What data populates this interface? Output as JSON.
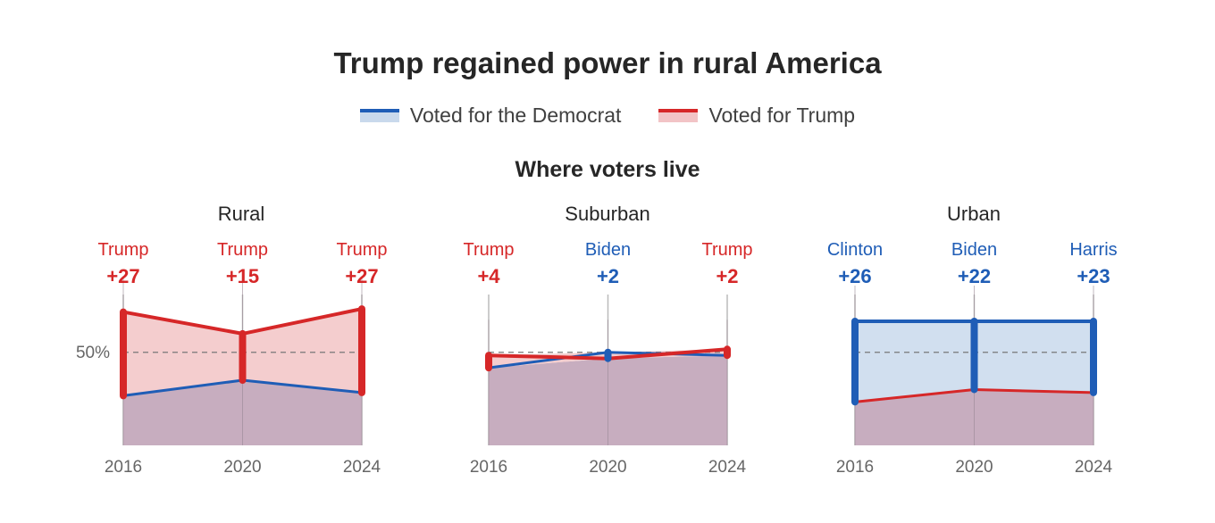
{
  "title": "Trump regained power in rural America",
  "legend": {
    "democrat": "Voted for the Democrat",
    "trump": "Voted for Trump"
  },
  "subtitle": "Where voters live",
  "colors": {
    "democrat": "#1f5db6",
    "democrat_fill": "#c9d9ec",
    "trump": "#d62728",
    "trump_fill": "#f2c4c6",
    "overlap_fill": "#c7adbf",
    "axis": "#bbbbbb",
    "reference": "#777777"
  },
  "chart_data": [
    {
      "type": "area",
      "title": "Rural",
      "x": [
        "2016",
        "2020",
        "2024"
      ],
      "reference_line": {
        "value": 50,
        "label": "50%"
      },
      "ylim": [
        20,
        60
      ],
      "series": [
        {
          "name": "Voted for the Democrat",
          "values": [
            36,
            41,
            37
          ]
        },
        {
          "name": "Voted for Trump",
          "values": [
            63,
            56,
            64
          ]
        }
      ],
      "annotations": [
        {
          "candidate": "Trump",
          "margin": "+27",
          "party": "trump"
        },
        {
          "candidate": "Trump",
          "margin": "+15",
          "party": "trump"
        },
        {
          "candidate": "Trump",
          "margin": "+27",
          "party": "trump"
        }
      ]
    },
    {
      "type": "area",
      "title": "Suburban",
      "x": [
        "2016",
        "2020",
        "2024"
      ],
      "ylim": [
        20,
        60
      ],
      "series": [
        {
          "name": "Voted for the Democrat",
          "values": [
            45,
            50,
            49
          ]
        },
        {
          "name": "Voted for Trump",
          "values": [
            49,
            48,
            51
          ]
        }
      ],
      "annotations": [
        {
          "candidate": "Trump",
          "margin": "+4",
          "party": "trump"
        },
        {
          "candidate": "Biden",
          "margin": "+2",
          "party": "democrat"
        },
        {
          "candidate": "Trump",
          "margin": "+2",
          "party": "trump"
        }
      ]
    },
    {
      "type": "area",
      "title": "Urban",
      "x": [
        "2016",
        "2020",
        "2024"
      ],
      "ylim": [
        20,
        60
      ],
      "series": [
        {
          "name": "Voted for the Democrat",
          "values": [
            60,
            60,
            60
          ]
        },
        {
          "name": "Voted for Trump",
          "values": [
            34,
            38,
            37
          ]
        }
      ],
      "annotations": [
        {
          "candidate": "Clinton",
          "margin": "+26",
          "party": "democrat"
        },
        {
          "candidate": "Biden",
          "margin": "+22",
          "party": "democrat"
        },
        {
          "candidate": "Harris",
          "margin": "+23",
          "party": "democrat"
        }
      ]
    }
  ]
}
